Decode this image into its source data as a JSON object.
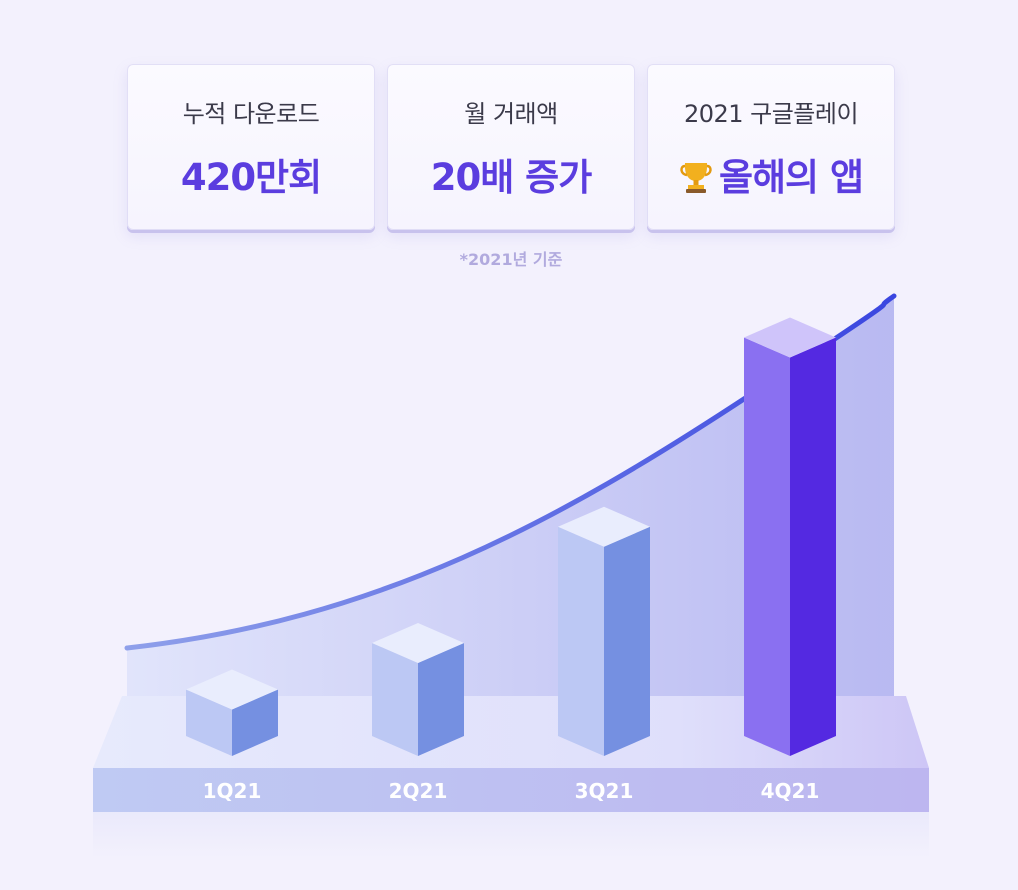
{
  "stats": [
    {
      "label": "누적 다운로드",
      "value": "420만회"
    },
    {
      "label": "월 거래액",
      "value": "20배 증가"
    },
    {
      "label": "2021 구글플레이",
      "value": "올해의 앱",
      "icon": "trophy-icon"
    }
  ],
  "note": "*2021년 기준",
  "chart_data": {
    "type": "bar",
    "categories": [
      "1Q21",
      "2Q21",
      "3Q21",
      "4Q21"
    ],
    "values": [
      1,
      2,
      4.5,
      9
    ],
    "trend": "rising-curve",
    "colors": {
      "bar": "#7590e1",
      "bar_highlight": "#5429e1",
      "line": "#3a46e0"
    }
  }
}
